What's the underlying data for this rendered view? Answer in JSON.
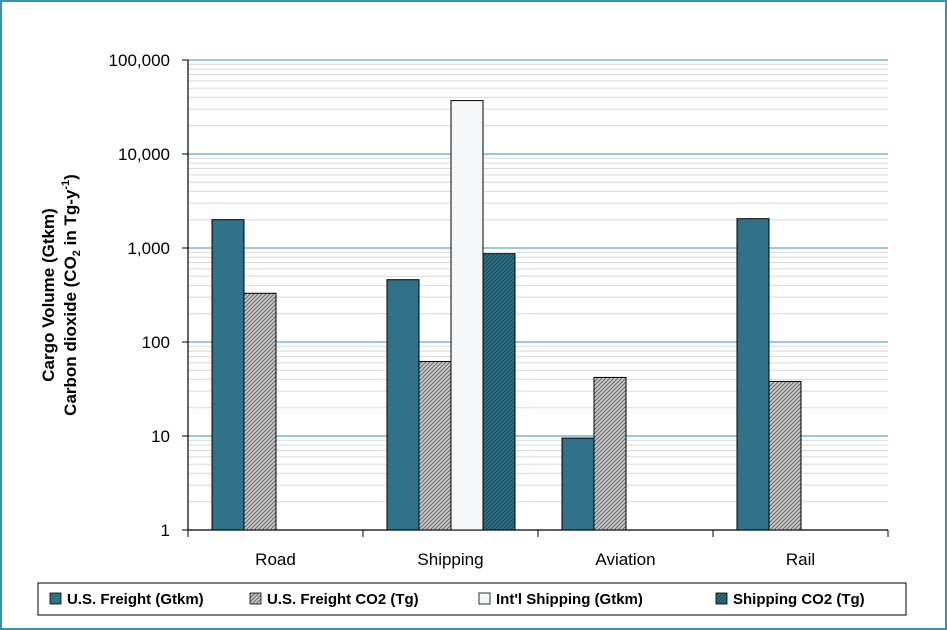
{
  "chart_data": {
    "type": "bar",
    "categories": [
      "Road",
      "Shipping",
      "Aviation",
      "Rail"
    ],
    "series": [
      {
        "name": "U.S. Freight (Gtkm)",
        "values": [
          2000,
          460,
          9.5,
          2050
        ],
        "color": "#2f7289",
        "pattern": "solid"
      },
      {
        "name": "U.S. Freight CO2 (Tg)",
        "values": [
          330,
          62,
          42,
          38
        ],
        "color": "#9a9a9a",
        "pattern": "hatch"
      },
      {
        "name": "Int'l Shipping (Gtkm)",
        "values": [
          null,
          37000,
          null,
          null
        ],
        "color": "#f4f6f8",
        "pattern": "solid"
      },
      {
        "name": "Shipping CO2 (Tg)",
        "values": [
          null,
          870,
          null,
          null
        ],
        "color": "#2c6377",
        "pattern": "dark-hatch"
      }
    ],
    "y_scale": "log",
    "ylim": [
      1,
      100000
    ],
    "y_ticks": [
      "1",
      "10",
      "100",
      "1,000",
      "10,000",
      "100,000"
    ],
    "ylabel_line1": "Cargo Volume (Gtkm)",
    "ylabel_line2_parts": [
      "Carbon dioxide (CO",
      "2",
      " in Tg-y",
      "-1",
      ")"
    ],
    "grid": true,
    "legend_position": "bottom"
  },
  "colors": {
    "frame": "#3a91b6",
    "major_grid": "#3a91b6",
    "minor_grid": "#d9d9d9",
    "axis": "#000000"
  }
}
